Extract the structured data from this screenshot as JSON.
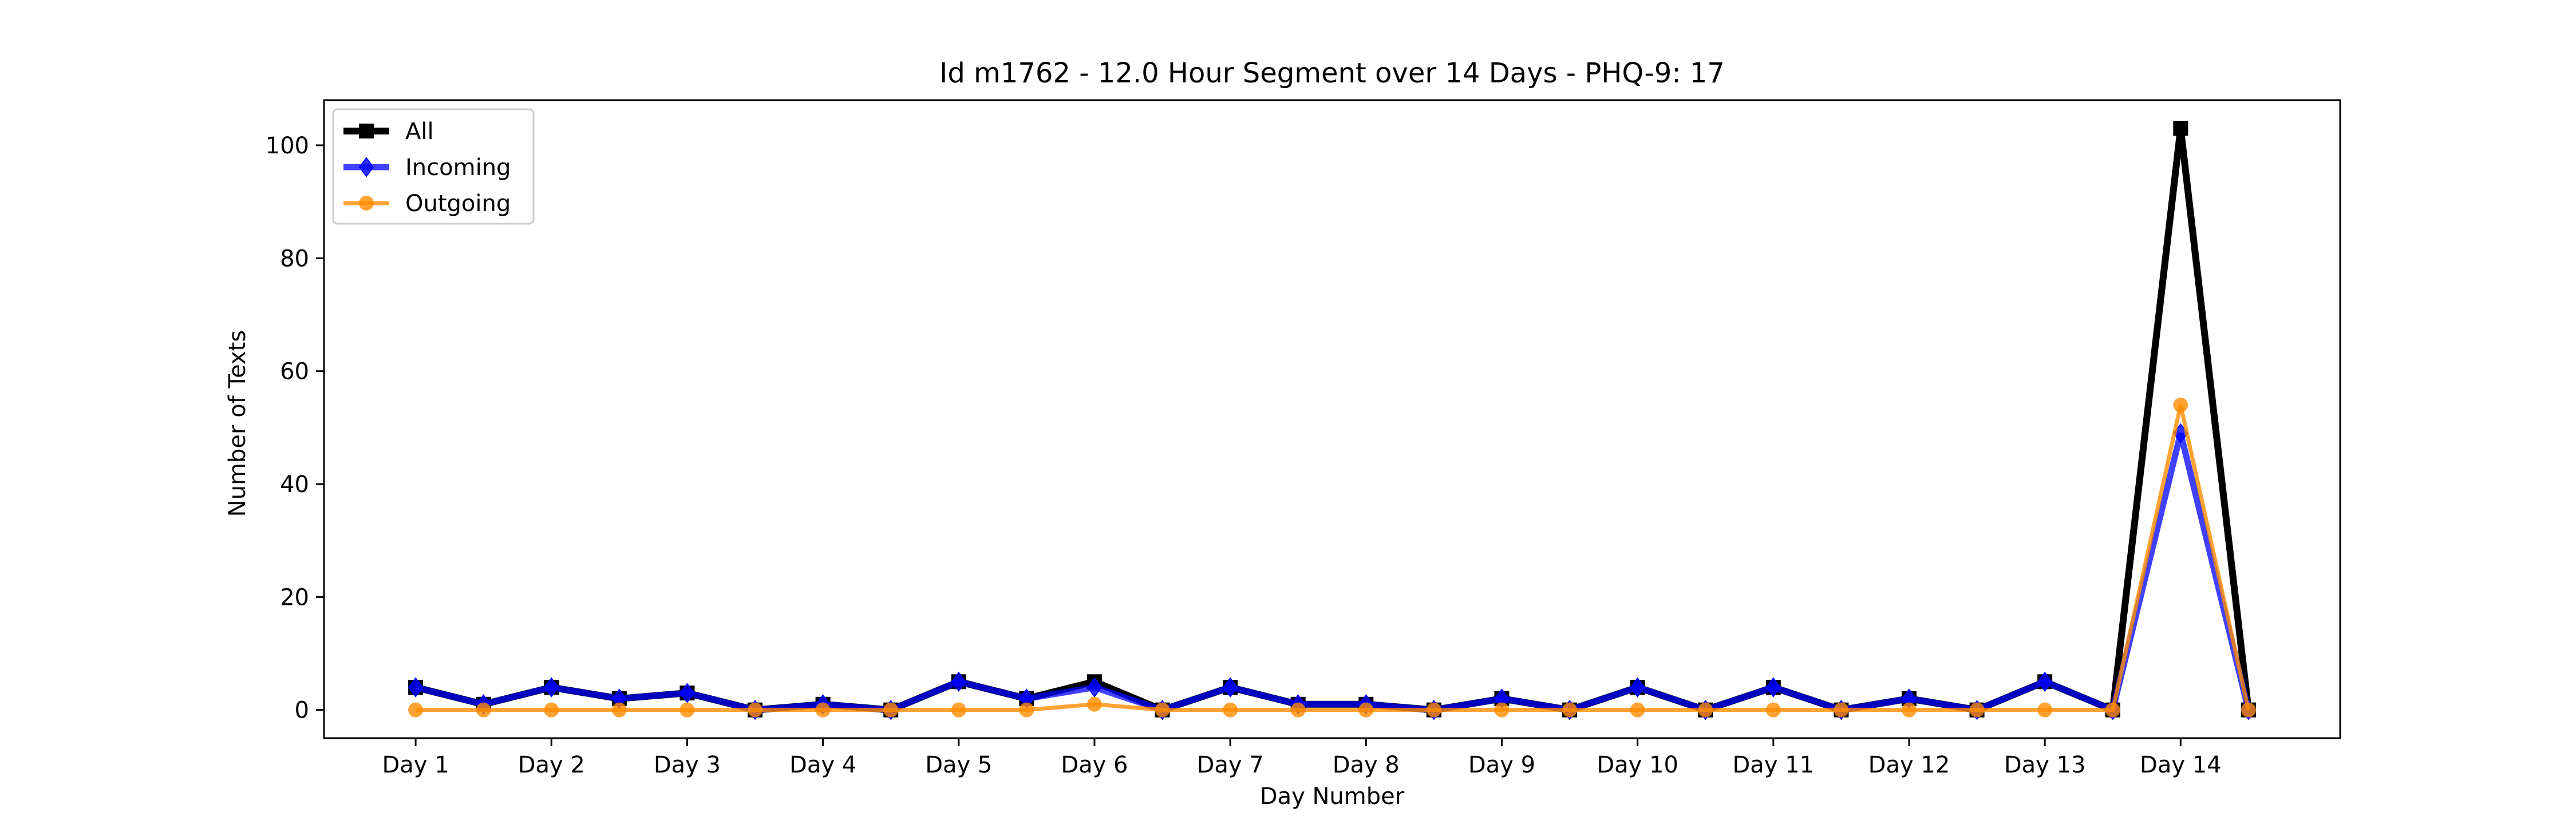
{
  "chart_data": {
    "type": "line",
    "title": "Id m1762 - 12.0 Hour Segment over 14 Days - PHQ-9: 17",
    "xlabel": "Day Number",
    "ylabel": "Number of Texts",
    "x": [
      1,
      2,
      3,
      4,
      5,
      6,
      7,
      8,
      9,
      10,
      11,
      12,
      13,
      14,
      15,
      16,
      17,
      18,
      19,
      20,
      21,
      22,
      23,
      24,
      25,
      26,
      27,
      28
    ],
    "xlim": [
      -0.35,
      29.35
    ],
    "ylim": [
      -5,
      108
    ],
    "x_ticks": [
      {
        "value": 1,
        "label": "Day 1"
      },
      {
        "value": 3,
        "label": "Day 2"
      },
      {
        "value": 5,
        "label": "Day 3"
      },
      {
        "value": 7,
        "label": "Day 4"
      },
      {
        "value": 9,
        "label": "Day 5"
      },
      {
        "value": 11,
        "label": "Day 6"
      },
      {
        "value": 13,
        "label": "Day 7"
      },
      {
        "value": 15,
        "label": "Day 8"
      },
      {
        "value": 17,
        "label": "Day 9"
      },
      {
        "value": 19,
        "label": "Day 10"
      },
      {
        "value": 21,
        "label": "Day 11"
      },
      {
        "value": 23,
        "label": "Day 12"
      },
      {
        "value": 25,
        "label": "Day 13"
      },
      {
        "value": 27,
        "label": "Day 14"
      }
    ],
    "y_ticks": [
      0,
      20,
      40,
      60,
      80,
      100
    ],
    "grid": false,
    "legend_position": "top-left",
    "series": [
      {
        "name": "All",
        "color": "#000000",
        "marker": "square",
        "values": [
          4,
          1,
          4,
          2,
          3,
          0,
          1,
          0,
          5,
          2,
          5,
          0,
          4,
          1,
          1,
          0,
          2,
          0,
          4,
          0,
          4,
          0,
          2,
          0,
          5,
          0,
          103,
          0
        ]
      },
      {
        "name": "Incoming",
        "color": "#0000ff",
        "marker": "diamond",
        "values": [
          4,
          1,
          4,
          2,
          3,
          0,
          1,
          0,
          5,
          2,
          4,
          0,
          4,
          1,
          1,
          0,
          2,
          0,
          4,
          0,
          4,
          0,
          2,
          0,
          5,
          0,
          49,
          0
        ]
      },
      {
        "name": "Outgoing",
        "color": "#ff8c00",
        "marker": "circle",
        "values": [
          0,
          0,
          0,
          0,
          0,
          0,
          0,
          0,
          0,
          0,
          1,
          0,
          0,
          0,
          0,
          0,
          0,
          0,
          0,
          0,
          0,
          0,
          0,
          0,
          0,
          0,
          54,
          0
        ]
      }
    ]
  }
}
